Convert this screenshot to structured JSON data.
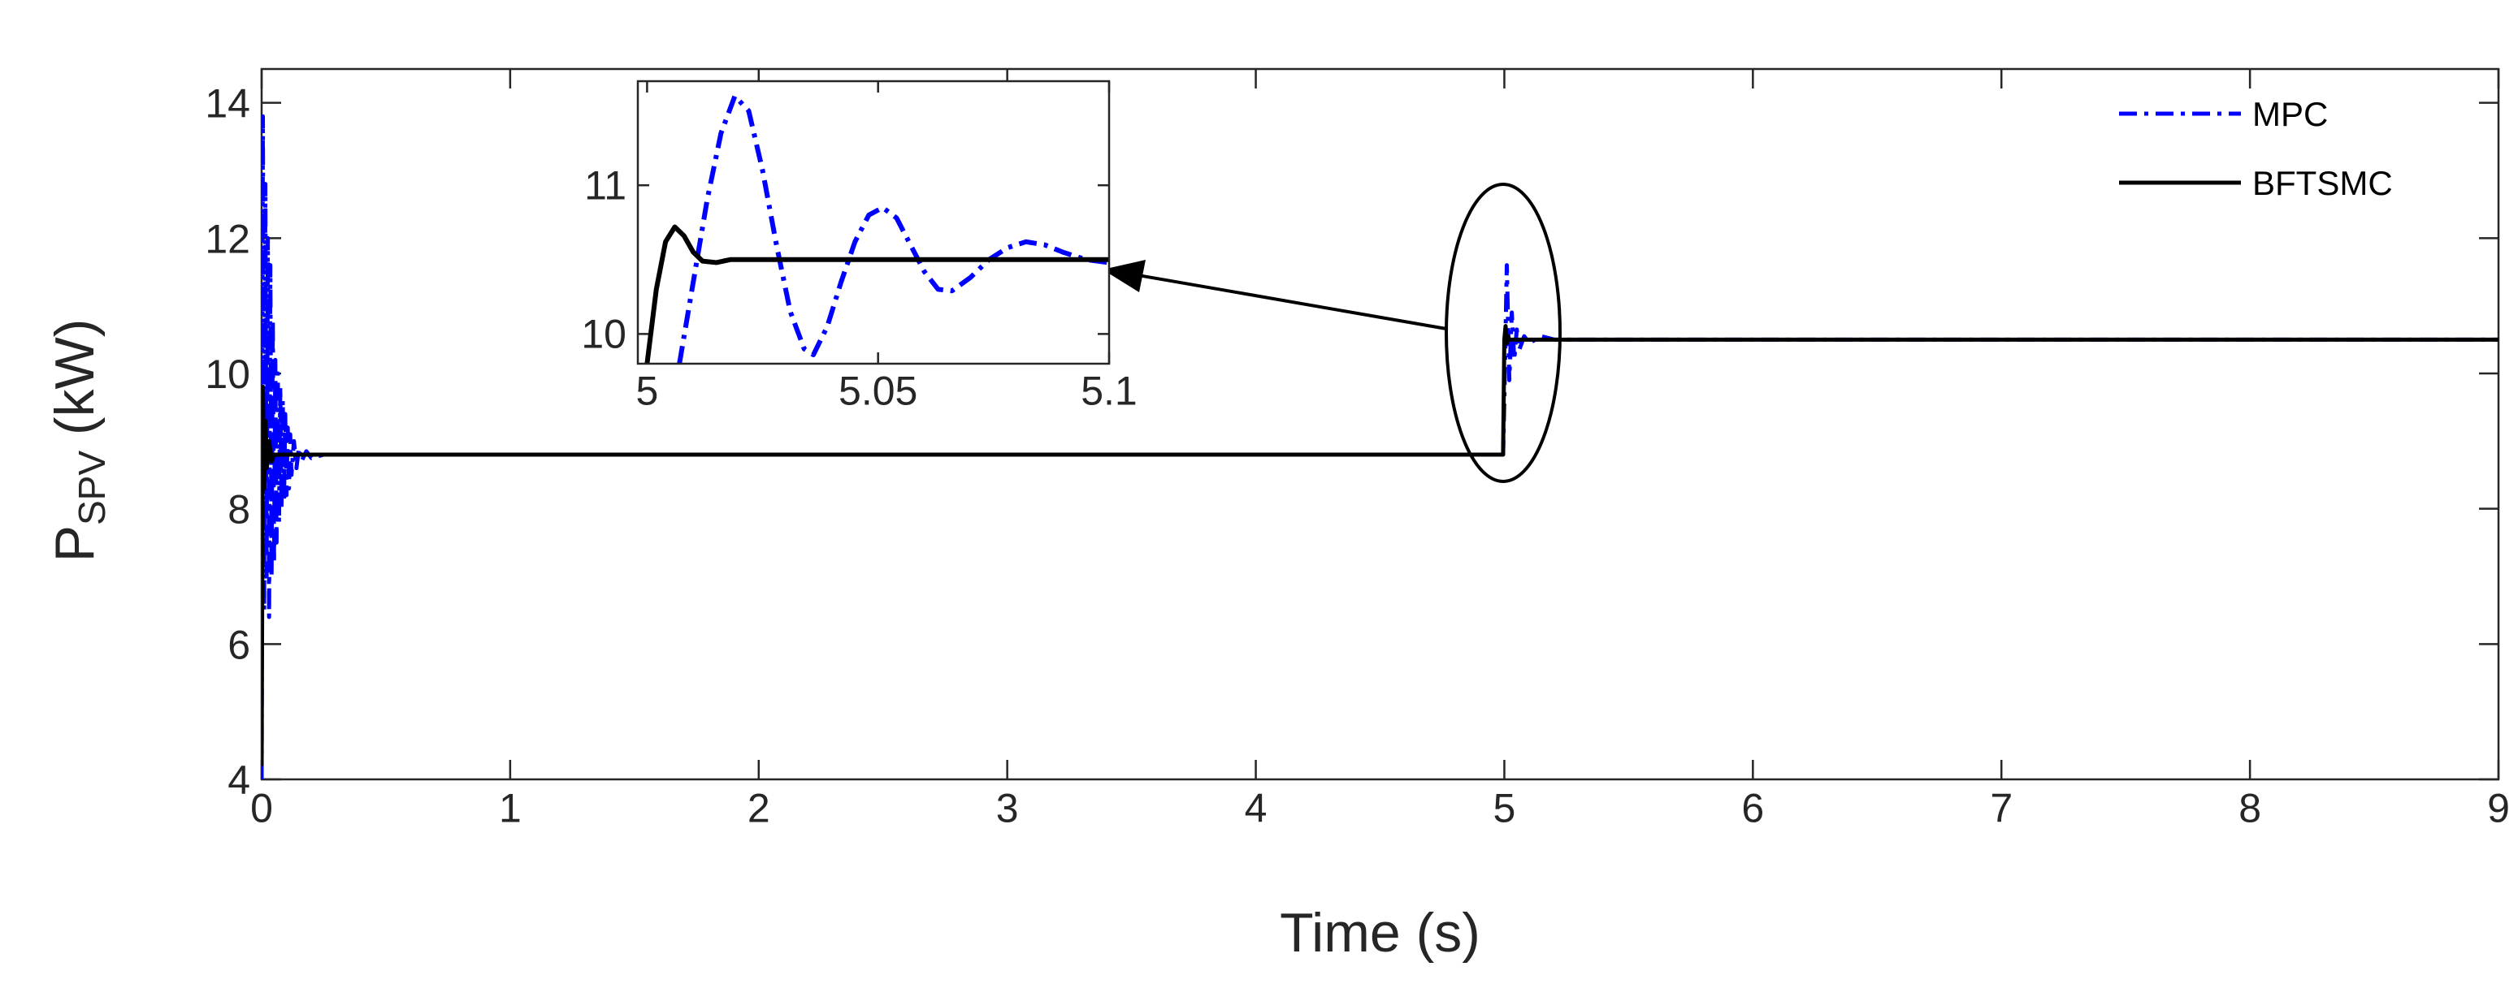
{
  "chart_data": [
    {
      "type": "line",
      "title": "",
      "xlabel": "Time (s)",
      "ylabel_main": "P",
      "ylabel_sub": "SPV",
      "ylabel_unit": " (kW)",
      "xlim": [
        0,
        9
      ],
      "ylim": [
        4,
        14.5
      ],
      "x_ticks": [
        0,
        1,
        2,
        3,
        4,
        5,
        6,
        7,
        8,
        9
      ],
      "y_ticks": [
        4,
        6,
        8,
        10,
        12,
        14
      ],
      "x_tick_labels": [
        "0",
        "1",
        "2",
        "3",
        "4",
        "5",
        "6",
        "7",
        "8",
        "9"
      ],
      "y_tick_labels": [
        "4",
        "6",
        "8",
        "10",
        "12",
        "14"
      ],
      "grid": false,
      "legend_position": "top-right",
      "series": [
        {
          "name": "MPC",
          "color": "#0000ff",
          "style": "dash-dot",
          "points": [
            [
              0,
              4
            ],
            [
              0.005,
              13.8
            ],
            [
              0.01,
              6.5
            ],
            [
              0.015,
              12.8
            ],
            [
              0.02,
              7.0
            ],
            [
              0.025,
              12.0
            ],
            [
              0.03,
              6.4
            ],
            [
              0.035,
              11.6
            ],
            [
              0.04,
              7.0
            ],
            [
              0.045,
              10.8
            ],
            [
              0.05,
              7.2
            ],
            [
              0.055,
              10.2
            ],
            [
              0.06,
              7.5
            ],
            [
              0.065,
              10.0
            ],
            [
              0.07,
              7.8
            ],
            [
              0.075,
              9.8
            ],
            [
              0.08,
              8.0
            ],
            [
              0.085,
              9.6
            ],
            [
              0.09,
              8.1
            ],
            [
              0.095,
              9.4
            ],
            [
              0.1,
              8.2
            ],
            [
              0.105,
              9.2
            ],
            [
              0.11,
              8.3
            ],
            [
              0.115,
              9.1
            ],
            [
              0.12,
              8.5
            ],
            [
              0.13,
              9.0
            ],
            [
              0.14,
              8.6
            ],
            [
              0.15,
              8.9
            ],
            [
              0.16,
              8.7
            ],
            [
              0.18,
              8.85
            ],
            [
              0.2,
              8.75
            ],
            [
              0.25,
              8.8
            ],
            [
              4.995,
              8.8
            ],
            [
              5.0,
              9.6
            ],
            [
              5.01,
              11.6
            ],
            [
              5.02,
              9.9
            ],
            [
              5.03,
              10.9
            ],
            [
              5.04,
              10.2
            ],
            [
              5.05,
              10.65
            ],
            [
              5.06,
              10.35
            ],
            [
              5.08,
              10.55
            ],
            [
              5.1,
              10.45
            ],
            [
              5.15,
              10.55
            ],
            [
              5.2,
              10.5
            ],
            [
              9,
              10.5
            ]
          ]
        },
        {
          "name": "BFTSMC",
          "color": "#000000",
          "style": "solid",
          "points": [
            [
              0,
              4.2
            ],
            [
              0.005,
              9.8
            ],
            [
              0.01,
              8.3
            ],
            [
              0.015,
              9.3
            ],
            [
              0.02,
              8.6
            ],
            [
              0.03,
              9.0
            ],
            [
              0.04,
              8.7
            ],
            [
              0.05,
              8.8
            ],
            [
              0.2,
              8.8
            ],
            [
              4.995,
              8.8
            ],
            [
              5.0,
              10.5
            ],
            [
              5.005,
              10.7
            ],
            [
              5.01,
              10.45
            ],
            [
              5.015,
              10.55
            ],
            [
              5.02,
              10.5
            ],
            [
              9,
              10.5
            ]
          ]
        }
      ]
    },
    {
      "type": "line",
      "title": "",
      "xlabel": "",
      "ylabel": "",
      "xlim": [
        4.998,
        5.1
      ],
      "ylim": [
        9.8,
        11.7
      ],
      "x_ticks": [
        5,
        5.05,
        5.1
      ],
      "y_ticks": [
        10,
        11
      ],
      "x_tick_labels": [
        "5",
        "5.05",
        "5.1"
      ],
      "y_tick_labels": [
        "10",
        "11"
      ],
      "grid": false,
      "series": [
        {
          "name": "MPC",
          "color": "#0000ff",
          "style": "dash-dot",
          "points": [
            [
              5.007,
              9.8
            ],
            [
              5.01,
              10.35
            ],
            [
              5.013,
              10.9
            ],
            [
              5.016,
              11.35
            ],
            [
              5.019,
              11.6
            ],
            [
              5.022,
              11.5
            ],
            [
              5.025,
              11.1
            ],
            [
              5.028,
              10.6
            ],
            [
              5.031,
              10.15
            ],
            [
              5.034,
              9.9
            ],
            [
              5.036,
              9.86
            ],
            [
              5.039,
              10.05
            ],
            [
              5.042,
              10.35
            ],
            [
              5.045,
              10.62
            ],
            [
              5.048,
              10.8
            ],
            [
              5.051,
              10.85
            ],
            [
              5.054,
              10.78
            ],
            [
              5.057,
              10.6
            ],
            [
              5.06,
              10.42
            ],
            [
              5.063,
              10.3
            ],
            [
              5.066,
              10.29
            ],
            [
              5.07,
              10.38
            ],
            [
              5.074,
              10.5
            ],
            [
              5.078,
              10.58
            ],
            [
              5.082,
              10.62
            ],
            [
              5.086,
              10.6
            ],
            [
              5.09,
              10.55
            ],
            [
              5.095,
              10.5
            ],
            [
              5.1,
              10.48
            ]
          ]
        },
        {
          "name": "BFTSMC",
          "color": "#000000",
          "style": "solid",
          "points": [
            [
              5.0,
              9.8
            ],
            [
              5.002,
              10.3
            ],
            [
              5.004,
              10.62
            ],
            [
              5.006,
              10.72
            ],
            [
              5.008,
              10.66
            ],
            [
              5.01,
              10.55
            ],
            [
              5.012,
              10.49
            ],
            [
              5.015,
              10.48
            ],
            [
              5.018,
              10.5
            ],
            [
              5.1,
              10.5
            ]
          ]
        }
      ]
    }
  ]
}
